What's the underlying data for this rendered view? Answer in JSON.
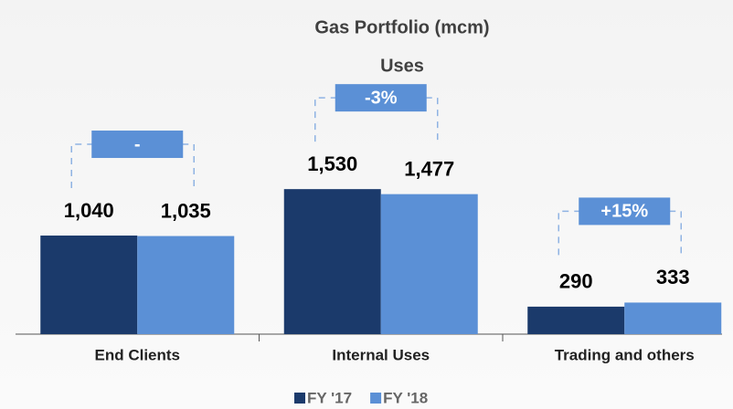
{
  "chart_data": {
    "type": "bar",
    "title": "Gas Portfolio (mcm)",
    "subtitle": "Uses",
    "categories": [
      "End Clients",
      "Internal Uses",
      "Trading and others"
    ],
    "series": [
      {
        "name": "FY '17",
        "color": "#1b3a6b",
        "values": [
          1040,
          1530,
          290
        ],
        "value_labels": [
          "1,040",
          "1,530",
          "290"
        ]
      },
      {
        "name": "FY '18",
        "color": "#5b90d6",
        "values": [
          1035,
          1477,
          333
        ],
        "value_labels": [
          "1,035",
          "1,477",
          "333"
        ]
      }
    ],
    "annotations": [
      "-",
      "-3%",
      "+15%"
    ],
    "ylim": [
      0,
      3400
    ],
    "legend": "bottom"
  }
}
